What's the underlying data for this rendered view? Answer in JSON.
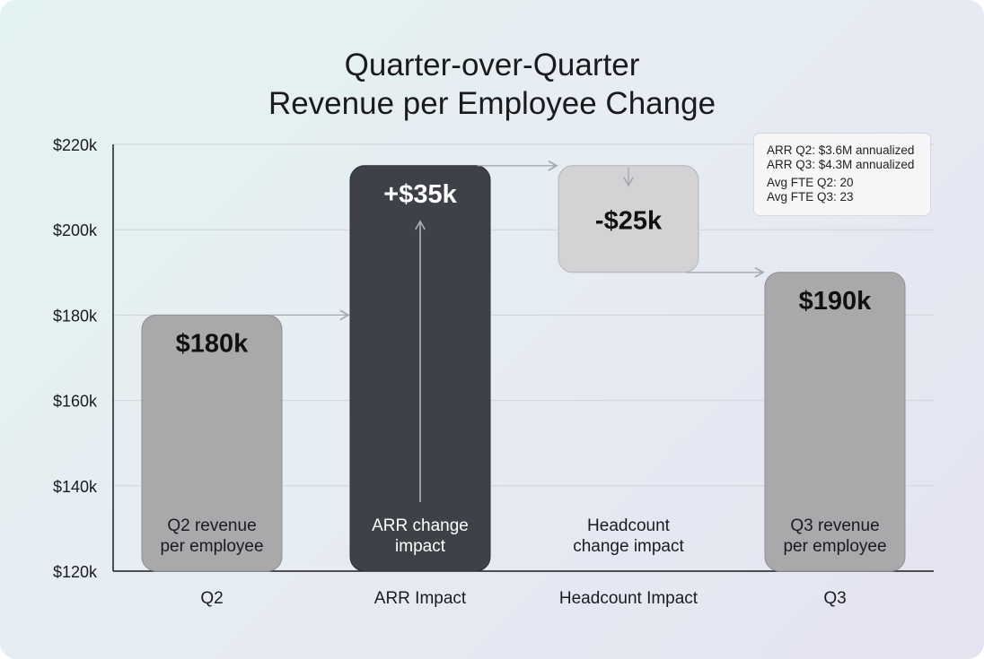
{
  "chart_data": {
    "type": "waterfall",
    "title_lines": [
      "Quarter-over-Quarter",
      "Revenue per Employee Change"
    ],
    "categories": [
      "Q2",
      "ARR Impact",
      "Headcount Impact",
      "Q3"
    ],
    "values": [
      180,
      35,
      -25,
      190
    ],
    "value_labels": [
      "$180k",
      "+$35k",
      "-$25k",
      "$190k"
    ],
    "bar_descriptions": [
      "Q2 revenue\nper employee",
      "ARR change\nimpact",
      "Headcount\nchange impact",
      "Q3 revenue\nper employee"
    ],
    "ylim": [
      120,
      220
    ],
    "yticks": [
      120,
      140,
      160,
      180,
      200,
      220
    ],
    "ytick_labels": [
      "$120k",
      "$140k",
      "$160k",
      "$180k",
      "$200k",
      "$220k"
    ],
    "grid": true,
    "colors": {
      "total": "#a9a9ab",
      "increase": "#3e4248",
      "decrease": "#d3d3d6",
      "grid": "#cfd4da",
      "axis": "#1b1b1f"
    },
    "annotation": {
      "lines": [
        "ARR Q2: $3.6M annualized",
        "ARR Q3: $4.3M annualized",
        "Avg FTE Q2: 20",
        "Avg FTE Q3: 23"
      ],
      "placement": "top-right"
    }
  }
}
